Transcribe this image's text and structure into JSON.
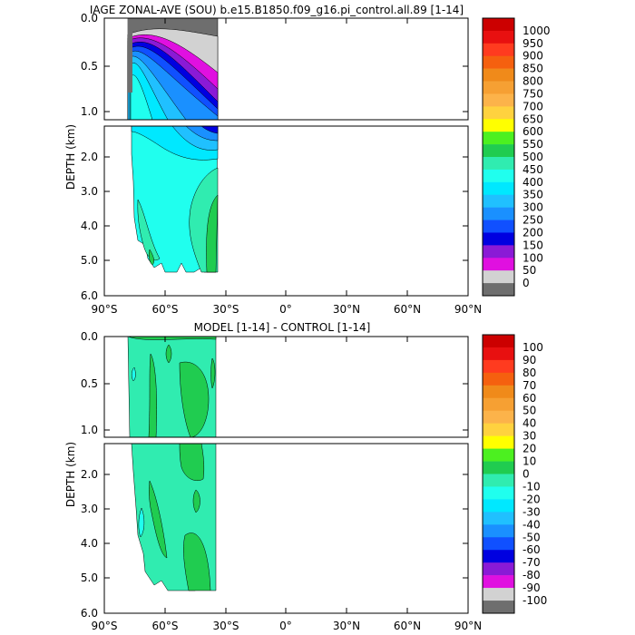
{
  "chart_data": [
    {
      "type": "contour",
      "title": "IAGE ZONAL-AVE (SOU) b.e15.B1850.f09_g16.pi_control.all.89 [1-14]",
      "ylabel": "DEPTH (km)",
      "xlabel": "",
      "x_ticks": [
        "90°S",
        "60°S",
        "30°S",
        "0°",
        "30°N",
        "60°N",
        "90°N"
      ],
      "x_tick_values": [
        -90,
        -60,
        -30,
        0,
        30,
        60,
        90
      ],
      "xlim": [
        -90,
        90
      ],
      "y_ticks_upper": [
        "0.0",
        "0.5",
        "1.0"
      ],
      "y_tick_values_upper": [
        0,
        0.5,
        1.0
      ],
      "ylim_upper": [
        0,
        1.1
      ],
      "y_ticks_lower": [
        "2.0",
        "3.0",
        "4.0",
        "5.0",
        "6.0"
      ],
      "y_tick_values_lower": [
        2,
        3,
        4,
        5,
        6
      ],
      "ylim_lower": [
        1.1,
        6.0
      ],
      "data_extent_lat": [
        -78,
        -33
      ],
      "colorbar_labels": [
        "1000",
        "950",
        "900",
        "850",
        "800",
        "750",
        "700",
        "650",
        "600",
        "550",
        "500",
        "450",
        "400",
        "350",
        "300",
        "250",
        "200",
        "150",
        "100",
        "50",
        "0"
      ],
      "colorbar_colors": [
        "#cc0000",
        "#e81010",
        "#ff3b1f",
        "#f5600f",
        "#f08a1a",
        "#f6a033",
        "#fcb34a",
        "#ffd23f",
        "#ffff00",
        "#4cf020",
        "#20cc50",
        "#30ecb0",
        "#20ffee",
        "#00e8ff",
        "#20c0ff",
        "#1a90ff",
        "#1050ff",
        "#0000e0",
        "#8a1ad6",
        "#e010e0",
        "#d2d2d2",
        "#6e6e6e"
      ]
    },
    {
      "type": "contour",
      "title": "MODEL [1-14] - CONTROL [1-14]",
      "ylabel": "DEPTH (km)",
      "xlabel": "",
      "x_ticks": [
        "90°S",
        "60°S",
        "30°S",
        "0°",
        "30°N",
        "60°N",
        "90°N"
      ],
      "x_tick_values": [
        -90,
        -60,
        -30,
        0,
        30,
        60,
        90
      ],
      "xlim": [
        -90,
        90
      ],
      "y_ticks_upper": [
        "0.0",
        "0.5",
        "1.0"
      ],
      "y_tick_values_upper": [
        0,
        0.5,
        1.0
      ],
      "ylim_upper": [
        0,
        1.1
      ],
      "y_ticks_lower": [
        "2.0",
        "3.0",
        "4.0",
        "5.0",
        "6.0"
      ],
      "y_tick_values_lower": [
        2,
        3,
        4,
        5,
        6
      ],
      "ylim_lower": [
        1.1,
        6.0
      ],
      "data_extent_lat": [
        -78,
        -33
      ],
      "colorbar_labels": [
        "100",
        "90",
        "80",
        "70",
        "60",
        "50",
        "40",
        "30",
        "20",
        "10",
        "0",
        "-10",
        "-20",
        "-30",
        "-40",
        "-50",
        "-60",
        "-70",
        "-80",
        "-90",
        "-100"
      ],
      "colorbar_colors": [
        "#cc0000",
        "#e81010",
        "#ff3b1f",
        "#f5600f",
        "#f08a1a",
        "#f6a033",
        "#fcb34a",
        "#ffd23f",
        "#ffff00",
        "#4cf020",
        "#20cc50",
        "#30ecb0",
        "#20ffee",
        "#00e8ff",
        "#20c0ff",
        "#1a90ff",
        "#1050ff",
        "#0000e0",
        "#8a1ad6",
        "#e010e0",
        "#d2d2d2",
        "#6e6e6e"
      ]
    }
  ]
}
